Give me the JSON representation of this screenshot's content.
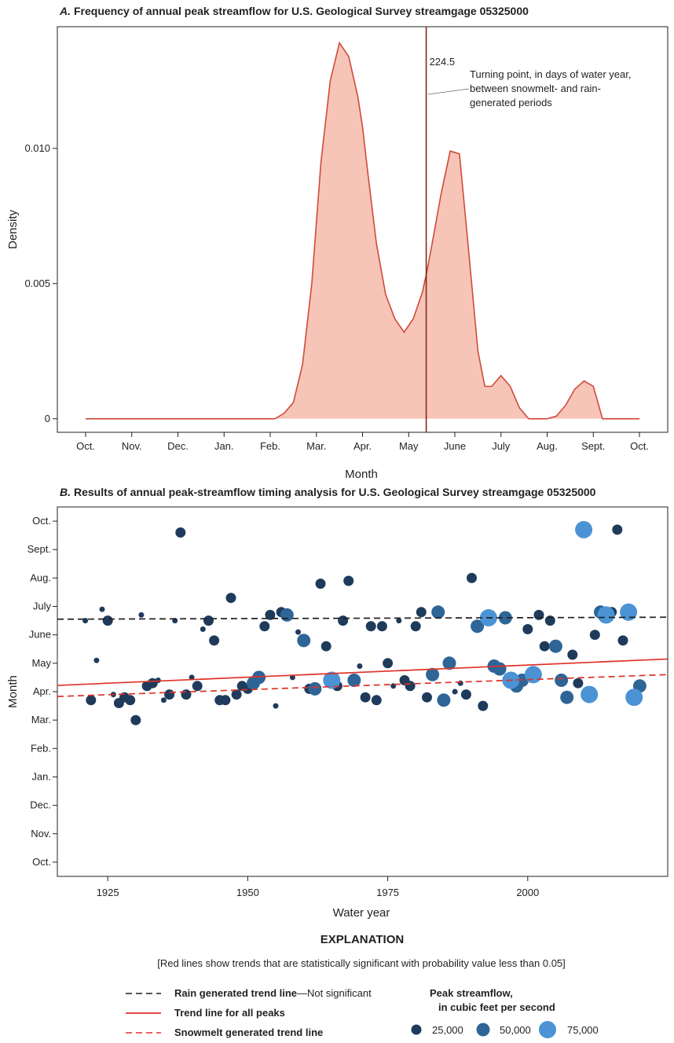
{
  "colors": {
    "density_fill": "#f7c4b8",
    "density_line": "#cf4b3a",
    "turning_line": "#7d2a1d",
    "dot_small": "#1f3b5b",
    "dot_medium": "#2e6596",
    "dot_large": "#4b93d4",
    "trend_all": "#e03127",
    "trend_rain": "#231f20",
    "trend_snow": "#e03127"
  },
  "chart_data": [
    {
      "type": "area",
      "title_letter": "A.",
      "title": "Frequency of annual peak streamflow for U.S. Geological Survey streamgage 05325000",
      "xlabel": "Month",
      "ylabel": "Density",
      "x_tick_labels": [
        "Oct.",
        "Nov.",
        "Dec.",
        "Jan.",
        "Feb.",
        "Mar.",
        "Apr.",
        "May",
        "June",
        "July",
        "Aug.",
        "Sept.",
        "Oct."
      ],
      "xlim": [
        0,
        12.5
      ],
      "ylim": [
        -0.0005,
        0.0145
      ],
      "y_ticks": [
        0,
        0.005,
        0.01
      ],
      "y_tick_labels": [
        "0",
        "0.005",
        "0.010"
      ],
      "density_x": [
        0,
        1,
        2,
        3,
        4,
        4.1,
        4.3,
        4.5,
        4.7,
        4.9,
        5.1,
        5.3,
        5.5,
        5.7,
        5.9,
        6.0,
        6.1,
        6.3,
        6.5,
        6.7,
        6.9,
        7.1,
        7.3,
        7.4,
        7.5,
        7.7,
        7.9,
        8.1,
        8.3,
        8.5,
        8.65,
        8.8,
        9.0,
        9.2,
        9.4,
        9.6,
        9.8,
        10.0,
        10.2,
        10.4,
        10.6,
        10.8,
        11.0,
        11.2,
        11.4,
        11.6,
        11.8,
        11.9,
        12.0
      ],
      "density_y": [
        0,
        0,
        0,
        0,
        0,
        0.0,
        0.0002,
        0.0006,
        0.002,
        0.005,
        0.0095,
        0.0125,
        0.0139,
        0.0134,
        0.0119,
        0.0108,
        0.0093,
        0.0065,
        0.0046,
        0.0037,
        0.0032,
        0.0037,
        0.0047,
        0.0055,
        0.0064,
        0.0083,
        0.0099,
        0.0098,
        0.0062,
        0.0025,
        0.0012,
        0.0012,
        0.0016,
        0.0012,
        0.0004,
        0.0,
        0.0,
        0.0,
        0.0001,
        0.0005,
        0.0011,
        0.0014,
        0.0012,
        0.0,
        0.0,
        0.0,
        0.0,
        0.0,
        0.0
      ],
      "turning_point_x": 7.38,
      "turning_point_label": "224.5",
      "annotation_lines": [
        "Turning point, in days of water year,",
        "between snowmelt- and rain-",
        "generated periods"
      ]
    },
    {
      "type": "scatter",
      "title_letter": "B.",
      "title": "Results of annual peak-streamflow timing analysis for U.S. Geological Survey streamgage 05325000",
      "xlabel": "Water year",
      "ylabel": "Month",
      "x_ticks": [
        1925,
        1950,
        1975,
        2000
      ],
      "xlim": [
        1916,
        2025
      ],
      "y_tick_labels": [
        "Oct.",
        "Nov.",
        "Dec.",
        "Jan.",
        "Feb.",
        "Mar.",
        "Apr.",
        "May",
        "June",
        "July",
        "Aug.",
        "Sept.",
        "Oct."
      ],
      "ylim": [
        -0.5,
        12.5
      ],
      "points": [
        [
          1921,
          8.5,
          1
        ],
        [
          1922,
          5.7,
          2
        ],
        [
          1923,
          7.1,
          1
        ],
        [
          1924,
          8.9,
          1
        ],
        [
          1925,
          8.5,
          2
        ],
        [
          1926,
          5.9,
          1
        ],
        [
          1927,
          5.6,
          2
        ],
        [
          1928,
          5.8,
          2
        ],
        [
          1929,
          5.7,
          2
        ],
        [
          1930,
          5.0,
          2
        ],
        [
          1931,
          8.7,
          1
        ],
        [
          1932,
          6.2,
          2
        ],
        [
          1933,
          6.3,
          2
        ],
        [
          1934,
          6.4,
          1
        ],
        [
          1935,
          5.7,
          1
        ],
        [
          1936,
          5.9,
          2
        ],
        [
          1937,
          8.5,
          1
        ],
        [
          1938,
          11.6,
          2
        ],
        [
          1939,
          5.9,
          2
        ],
        [
          1940,
          6.5,
          1
        ],
        [
          1941,
          6.2,
          2
        ],
        [
          1942,
          8.2,
          1
        ],
        [
          1943,
          8.5,
          2
        ],
        [
          1944,
          7.8,
          2
        ],
        [
          1945,
          5.7,
          2
        ],
        [
          1946,
          5.7,
          2
        ],
        [
          1947,
          9.3,
          2
        ],
        [
          1948,
          5.9,
          2
        ],
        [
          1949,
          6.2,
          2
        ],
        [
          1950,
          6.1,
          2
        ],
        [
          1951,
          6.3,
          3
        ],
        [
          1952,
          6.5,
          3
        ],
        [
          1953,
          8.3,
          2
        ],
        [
          1954,
          8.7,
          2
        ],
        [
          1955,
          5.5,
          1
        ],
        [
          1956,
          8.8,
          2
        ],
        [
          1957,
          8.7,
          3
        ],
        [
          1958,
          6.5,
          1
        ],
        [
          1959,
          8.1,
          1
        ],
        [
          1960,
          7.8,
          3
        ],
        [
          1961,
          6.1,
          2
        ],
        [
          1962,
          6.1,
          3
        ],
        [
          1963,
          9.8,
          2
        ],
        [
          1964,
          7.6,
          2
        ],
        [
          1965,
          6.4,
          4
        ],
        [
          1966,
          6.2,
          2
        ],
        [
          1967,
          8.5,
          2
        ],
        [
          1968,
          9.9,
          2
        ],
        [
          1969,
          6.4,
          3
        ],
        [
          1970,
          6.9,
          1
        ],
        [
          1971,
          5.8,
          2
        ],
        [
          1972,
          8.3,
          2
        ],
        [
          1973,
          5.7,
          2
        ],
        [
          1974,
          8.3,
          2
        ],
        [
          1975,
          7.0,
          2
        ],
        [
          1976,
          6.2,
          1
        ],
        [
          1977,
          8.5,
          1
        ],
        [
          1978,
          6.4,
          2
        ],
        [
          1979,
          6.2,
          2
        ],
        [
          1980,
          8.3,
          2
        ],
        [
          1981,
          8.8,
          2
        ],
        [
          1982,
          5.8,
          2
        ],
        [
          1983,
          6.6,
          3
        ],
        [
          1984,
          8.8,
          3
        ],
        [
          1985,
          5.7,
          3
        ],
        [
          1986,
          7.0,
          3
        ],
        [
          1987,
          6.0,
          1
        ],
        [
          1988,
          6.3,
          1
        ],
        [
          1989,
          5.9,
          2
        ],
        [
          1990,
          10.0,
          2
        ],
        [
          1991,
          8.3,
          3
        ],
        [
          1992,
          5.5,
          2
        ],
        [
          1993,
          8.6,
          4
        ],
        [
          1994,
          6.9,
          3
        ],
        [
          1995,
          6.8,
          3
        ],
        [
          1996,
          8.6,
          3
        ],
        [
          1997,
          6.4,
          4
        ],
        [
          1998,
          6.2,
          3
        ],
        [
          1999,
          6.4,
          3
        ],
        [
          2000,
          8.2,
          2
        ],
        [
          2001,
          6.6,
          4
        ],
        [
          2002,
          8.7,
          2
        ],
        [
          2003,
          7.6,
          2
        ],
        [
          2004,
          8.5,
          2
        ],
        [
          2005,
          7.6,
          3
        ],
        [
          2006,
          6.4,
          3
        ],
        [
          2007,
          5.8,
          3
        ],
        [
          2008,
          7.3,
          2
        ],
        [
          2009,
          6.3,
          2
        ],
        [
          2010,
          11.7,
          4
        ],
        [
          2011,
          5.9,
          4
        ],
        [
          2012,
          8.0,
          2
        ],
        [
          2013,
          8.8,
          3
        ],
        [
          2014,
          8.7,
          4
        ],
        [
          2015,
          8.8,
          2
        ],
        [
          2016,
          11.7,
          2
        ],
        [
          2017,
          7.8,
          2
        ],
        [
          2018,
          8.8,
          4
        ],
        [
          2019,
          5.8,
          4
        ],
        [
          2020,
          6.2,
          3
        ]
      ],
      "trend_lines": [
        {
          "name": "Rain generated trend line",
          "x": [
            1916,
            2025
          ],
          "y": [
            8.55,
            8.62
          ],
          "style": "dashed-black"
        },
        {
          "name": "Trend line for all peaks",
          "x": [
            1916,
            2025
          ],
          "y": [
            6.22,
            7.15
          ],
          "style": "solid-red"
        },
        {
          "name": "Snowmelt generated trend line",
          "x": [
            1916,
            2025
          ],
          "y": [
            5.83,
            6.6
          ],
          "style": "dashed-red"
        }
      ]
    }
  ],
  "explanation": {
    "heading": "EXPLANATION",
    "note": "[Red lines show trends that are statistically significant with probability value less than 0.05]",
    "legend_rain": "Rain generated trend line",
    "legend_rain_suffix": "—Not significant",
    "legend_all": "Trend line for all peaks",
    "legend_snow": "Snowmelt generated trend line",
    "size_title_1": "Peak streamflow,",
    "size_title_2": "in cubic feet per second",
    "size_labels": [
      "25,000",
      "50,000",
      "75,000"
    ]
  }
}
